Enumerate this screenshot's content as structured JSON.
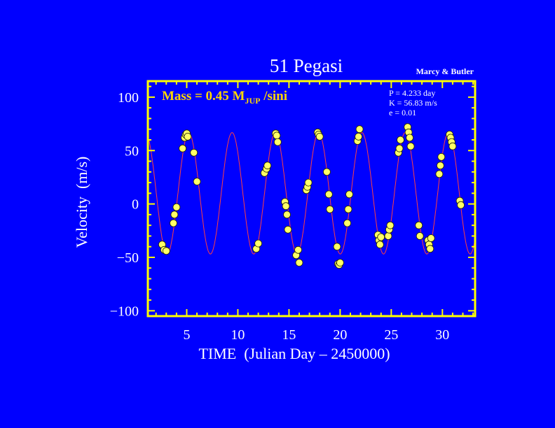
{
  "chart_data": {
    "type": "scatter",
    "title": "51 Pegasi",
    "credit": "Marcy & Butler",
    "xlabel": "TIME  (Julian Day – 2450000)",
    "ylabel": "Velocity  (m/s)",
    "xlim": [
      1.2,
      33.2
    ],
    "ylim": [
      -105,
      115
    ],
    "xticks": [
      5,
      10,
      15,
      20,
      25,
      30
    ],
    "yticks": [
      100,
      50,
      0,
      -50,
      -100
    ],
    "ytick_labels": [
      "100",
      "50",
      "0",
      "−50",
      "−100"
    ],
    "mass_label": {
      "prefix": "Mass = 0.45 M",
      "subscript": "JUP",
      "suffix": " /sini"
    },
    "orbit_params": [
      "P = 4.233 day",
      "K = 56.83 m/s",
      "e = 0.01"
    ],
    "model": {
      "period_days": 4.233,
      "amplitude_ms": 56.83,
      "eccentricity": 0.01,
      "offset_ms": 10,
      "peak_time": 5.2
    },
    "colors": {
      "background": "#0000ff",
      "frame": "#ffff00",
      "points": "#ffff66",
      "curve": "#ff4040",
      "text": "#ffffff",
      "mass_text": "#ffd700"
    },
    "points": [
      {
        "x": 2.6,
        "y": -38
      },
      {
        "x": 2.8,
        "y": -43
      },
      {
        "x": 3.0,
        "y": -44
      },
      {
        "x": 3.7,
        "y": -18
      },
      {
        "x": 3.8,
        "y": -10
      },
      {
        "x": 4.0,
        "y": -3
      },
      {
        "x": 4.6,
        "y": 52
      },
      {
        "x": 4.8,
        "y": 62
      },
      {
        "x": 4.9,
        "y": 65
      },
      {
        "x": 5.0,
        "y": 66
      },
      {
        "x": 5.1,
        "y": 63
      },
      {
        "x": 5.7,
        "y": 48
      },
      {
        "x": 6.0,
        "y": 21
      },
      {
        "x": 11.8,
        "y": -42
      },
      {
        "x": 12.0,
        "y": -37
      },
      {
        "x": 12.6,
        "y": 29
      },
      {
        "x": 12.8,
        "y": 33
      },
      {
        "x": 12.9,
        "y": 36
      },
      {
        "x": 13.7,
        "y": 66
      },
      {
        "x": 13.8,
        "y": 64
      },
      {
        "x": 13.9,
        "y": 58
      },
      {
        "x": 14.6,
        "y": 2
      },
      {
        "x": 14.7,
        "y": -2
      },
      {
        "x": 14.8,
        "y": -10
      },
      {
        "x": 14.9,
        "y": -24
      },
      {
        "x": 15.7,
        "y": -48
      },
      {
        "x": 15.9,
        "y": -43
      },
      {
        "x": 16.0,
        "y": -55
      },
      {
        "x": 16.7,
        "y": 13
      },
      {
        "x": 16.8,
        "y": 16
      },
      {
        "x": 16.9,
        "y": 20
      },
      {
        "x": 17.8,
        "y": 67
      },
      {
        "x": 17.9,
        "y": 65
      },
      {
        "x": 18.0,
        "y": 63
      },
      {
        "x": 18.7,
        "y": 30
      },
      {
        "x": 18.9,
        "y": 9
      },
      {
        "x": 19.0,
        "y": -5
      },
      {
        "x": 19.7,
        "y": -40
      },
      {
        "x": 19.8,
        "y": -56
      },
      {
        "x": 19.9,
        "y": -57
      },
      {
        "x": 20.0,
        "y": -55
      },
      {
        "x": 20.7,
        "y": -18
      },
      {
        "x": 20.8,
        "y": -5
      },
      {
        "x": 20.9,
        "y": 9
      },
      {
        "x": 21.7,
        "y": 59
      },
      {
        "x": 21.8,
        "y": 63
      },
      {
        "x": 21.9,
        "y": 70
      },
      {
        "x": 23.7,
        "y": -29
      },
      {
        "x": 23.8,
        "y": -34
      },
      {
        "x": 23.9,
        "y": -38
      },
      {
        "x": 24.0,
        "y": -31
      },
      {
        "x": 24.7,
        "y": -30
      },
      {
        "x": 24.8,
        "y": -24
      },
      {
        "x": 24.9,
        "y": -20
      },
      {
        "x": 25.7,
        "y": 48
      },
      {
        "x": 25.8,
        "y": 52
      },
      {
        "x": 25.9,
        "y": 60
      },
      {
        "x": 26.6,
        "y": 72
      },
      {
        "x": 26.7,
        "y": 67
      },
      {
        "x": 26.8,
        "y": 62
      },
      {
        "x": 26.9,
        "y": 54
      },
      {
        "x": 27.7,
        "y": -20
      },
      {
        "x": 27.8,
        "y": -30
      },
      {
        "x": 28.6,
        "y": -34
      },
      {
        "x": 28.7,
        "y": -38
      },
      {
        "x": 28.8,
        "y": -42
      },
      {
        "x": 28.9,
        "y": -32
      },
      {
        "x": 29.7,
        "y": 28
      },
      {
        "x": 29.8,
        "y": 36
      },
      {
        "x": 29.9,
        "y": 44
      },
      {
        "x": 30.7,
        "y": 65
      },
      {
        "x": 30.8,
        "y": 62
      },
      {
        "x": 30.9,
        "y": 58
      },
      {
        "x": 31.0,
        "y": 54
      },
      {
        "x": 31.7,
        "y": 3
      },
      {
        "x": 31.8,
        "y": -1
      }
    ]
  }
}
